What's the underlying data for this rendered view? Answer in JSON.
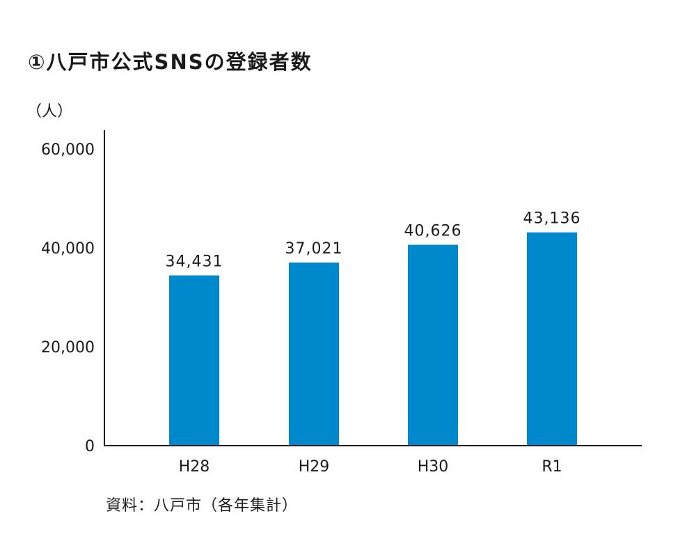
{
  "chart_data": {
    "type": "bar",
    "title": "①八戸市公式SNSの登録者数",
    "ylabel": "（人）",
    "xlabel": "",
    "categories": [
      "H28",
      "H29",
      "H30",
      "R1"
    ],
    "values": [
      34431,
      37021,
      40626,
      43136
    ],
    "data_labels": [
      "34,431",
      "37,021",
      "40,626",
      "43,136"
    ],
    "ylim": [
      0,
      60000
    ],
    "yticks": [
      0,
      20000,
      40000,
      60000
    ],
    "ytick_labels": [
      "0",
      "20,000",
      "40,000",
      "60,000"
    ],
    "grid": false,
    "bar_color": "#0088cc",
    "source": "資料：八戸市（各年集計）"
  }
}
